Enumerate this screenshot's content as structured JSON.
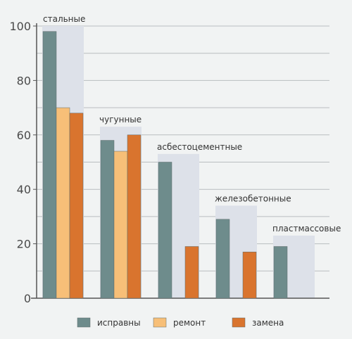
{
  "chart_data": {
    "type": "bar",
    "title": "",
    "xlabel": "",
    "ylabel": "",
    "ylim": [
      0,
      100
    ],
    "yticks": [
      0,
      20,
      40,
      60,
      80,
      100
    ],
    "grid": true,
    "legend_position": "bottom",
    "categories": [
      "стальные",
      "чугунные",
      "асбестоцементные",
      "железобетонные",
      "пластмассовые"
    ],
    "group_totals": [
      100,
      63,
      53,
      34,
      23
    ],
    "series": [
      {
        "name": "исправны",
        "color": "#6e8c8c",
        "values": [
          98,
          58,
          50,
          29,
          19
        ]
      },
      {
        "name": "ремонт",
        "color": "#f7bf78",
        "values": [
          70,
          54,
          null,
          null,
          null
        ]
      },
      {
        "name": "замена",
        "color": "#d9742e",
        "values": [
          68,
          60,
          19,
          17,
          null
        ]
      }
    ],
    "colors": {
      "background": "#f1f3f3",
      "group_box": "#dde1e9",
      "grid": "#b9bdc0",
      "axis": "#555555"
    }
  }
}
